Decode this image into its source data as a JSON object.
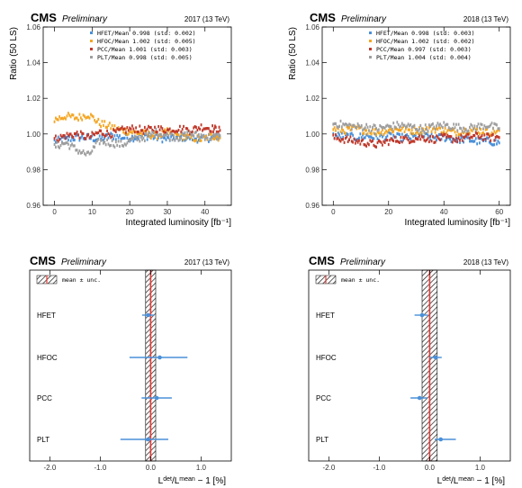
{
  "chart_data": [
    {
      "type": "scatter",
      "panel": "top-left",
      "experiment": "CMS",
      "status": "Preliminary",
      "energy_label": "2017 (13 TeV)",
      "xlabel": "Integrated luminosity [fb⁻¹]",
      "ylabel": "Ratio (50 LS)",
      "xlim": [
        -3,
        47
      ],
      "ylim": [
        0.96,
        1.06
      ],
      "xticks": [
        0,
        10,
        20,
        30,
        40
      ],
      "xticklabels": [
        "0",
        "10",
        "20",
        "30",
        "40"
      ],
      "yticks": [
        0.96,
        0.98,
        1.0,
        1.02,
        1.04,
        1.06
      ],
      "yticklabels": [
        "0.96",
        "0.98",
        "1.00",
        "1.02",
        "1.04",
        "1.06"
      ],
      "legend_position": "top-right",
      "series": [
        {
          "legend": "HFET/Mean 0.998 (std: 0.002)",
          "color": "#4a90d9",
          "x": [
            0,
            3,
            6,
            9,
            12,
            15,
            18,
            21,
            24,
            27,
            30,
            33,
            36,
            39,
            42,
            44
          ],
          "y": [
            0.996,
            0.997,
            0.998,
            0.998,
            0.997,
            0.999,
            0.998,
            0.998,
            0.999,
            0.998,
            0.997,
            0.998,
            0.998,
            0.997,
            0.998,
            0.998
          ]
        },
        {
          "legend": "HFOC/Mean 1.002 (std: 0.005)",
          "color": "#f5a623",
          "x": [
            0,
            3,
            6,
            9,
            12,
            15,
            18,
            21,
            24,
            27,
            30,
            33,
            36,
            39,
            42,
            44
          ],
          "y": [
            1.008,
            1.01,
            1.009,
            1.011,
            1.006,
            1.004,
            1.002,
            1.001,
            1.0,
            0.999,
            1.001,
            0.999,
            0.998,
            0.997,
            0.999,
            0.998
          ]
        },
        {
          "legend": "PCC/Mean 1.001 (std: 0.003)",
          "color": "#c0392b",
          "x": [
            0,
            3,
            6,
            9,
            12,
            15,
            18,
            21,
            24,
            27,
            30,
            33,
            36,
            39,
            42,
            44
          ],
          "y": [
            0.997,
            0.999,
            1.0,
            0.998,
            1.001,
            1.0,
            1.002,
            1.003,
            1.002,
            1.003,
            1.002,
            1.003,
            1.002,
            1.004,
            1.003,
            1.002
          ]
        },
        {
          "legend": "PLT/Mean 0.998 (std: 0.005)",
          "color": "#9e9e9e",
          "x": [
            0,
            3,
            6,
            9,
            12,
            15,
            18,
            21,
            24,
            27,
            30,
            33,
            36,
            39,
            42,
            44
          ],
          "y": [
            0.993,
            0.995,
            0.991,
            0.988,
            0.996,
            0.995,
            0.994,
            0.997,
            0.998,
            1.001,
            0.999,
            0.998,
            1.0,
            0.999,
            0.998,
            0.999
          ]
        }
      ]
    },
    {
      "type": "scatter",
      "panel": "top-right",
      "experiment": "CMS",
      "status": "Preliminary",
      "energy_label": "2018 (13 TeV)",
      "xlabel": "Integrated luminosity [fb⁻¹]",
      "ylabel": "Ratio (50 LS)",
      "xlim": [
        -4,
        64
      ],
      "ylim": [
        0.96,
        1.06
      ],
      "xticks": [
        0,
        20,
        40,
        60
      ],
      "xticklabels": [
        "0",
        "20",
        "40",
        "60"
      ],
      "yticks": [
        0.96,
        0.98,
        1.0,
        1.02,
        1.04,
        1.06
      ],
      "yticklabels": [
        "0.96",
        "0.98",
        "1.00",
        "1.02",
        "1.04",
        "1.06"
      ],
      "legend_position": "top-right",
      "series": [
        {
          "legend": "HFET/Mean 0.998 (std: 0.003)",
          "color": "#4a90d9",
          "x": [
            0,
            4,
            8,
            12,
            16,
            20,
            24,
            28,
            32,
            36,
            40,
            44,
            48,
            52,
            56,
            60
          ],
          "y": [
            0.999,
            0.999,
            0.998,
            0.999,
            0.998,
            0.999,
            0.998,
            0.998,
            0.999,
            0.998,
            0.998,
            0.997,
            0.997,
            0.996,
            0.996,
            0.995
          ]
        },
        {
          "legend": "HFOC/Mean 1.002 (std: 0.002)",
          "color": "#f5a623",
          "x": [
            0,
            4,
            8,
            12,
            16,
            20,
            24,
            28,
            32,
            36,
            40,
            44,
            48,
            52,
            56,
            60
          ],
          "y": [
            1.003,
            1.002,
            1.003,
            1.002,
            1.001,
            1.002,
            1.003,
            1.002,
            1.002,
            1.003,
            1.002,
            1.001,
            1.002,
            1.002,
            1.001,
            1.002
          ]
        },
        {
          "legend": "PCC/Mean 0.997 (std: 0.003)",
          "color": "#c0392b",
          "x": [
            0,
            4,
            8,
            12,
            16,
            20,
            24,
            28,
            32,
            36,
            40,
            44,
            48,
            52,
            56,
            60
          ],
          "y": [
            0.998,
            0.997,
            0.996,
            0.995,
            0.994,
            0.996,
            0.997,
            0.997,
            0.998,
            0.997,
            0.998,
            0.997,
            0.998,
            0.999,
            0.998,
            0.998
          ]
        },
        {
          "legend": "PLT/Mean 1.004 (std: 0.004)",
          "color": "#9e9e9e",
          "x": [
            0,
            4,
            8,
            12,
            16,
            20,
            24,
            28,
            32,
            36,
            40,
            44,
            48,
            52,
            56,
            60
          ],
          "y": [
            1.006,
            1.005,
            1.004,
            1.004,
            1.003,
            1.004,
            1.005,
            1.004,
            1.003,
            1.004,
            1.005,
            1.004,
            1.003,
            1.004,
            1.005,
            1.003
          ]
        }
      ]
    },
    {
      "type": "scatter",
      "panel": "bottom-left",
      "experiment": "CMS",
      "status": "Preliminary",
      "energy_label": "2017 (13 TeV)",
      "xlabel_main": "L",
      "xlabel_sup": "det",
      "xlabel_mid": "/L",
      "xlabel_sup2": "mean",
      "xlabel_tail": " − 1 [%]",
      "xlim": [
        -2.4,
        1.6
      ],
      "xticks": [
        -2.0,
        -1.0,
        0.0,
        1.0
      ],
      "xticklabels": [
        "-2.0",
        "-1.0",
        "0.0",
        "1.0"
      ],
      "legend_label": "mean ± unc.",
      "legend_position": "top-left",
      "band": [
        -0.1,
        0.1
      ],
      "detectors": [
        "HFET",
        "HFOC",
        "PCC",
        "PLT"
      ],
      "central": [
        -0.05,
        0.18,
        0.12,
        -0.05
      ],
      "err_minus": [
        0.12,
        0.6,
        0.3,
        0.55
      ],
      "err_plus": [
        0.12,
        0.55,
        0.3,
        0.4
      ]
    },
    {
      "type": "scatter",
      "panel": "bottom-right",
      "experiment": "CMS",
      "status": "Preliminary",
      "energy_label": "2018 (13 TeV)",
      "xlabel_main": "L",
      "xlabel_sup": "det",
      "xlabel_mid": "/L",
      "xlabel_sup2": "mean",
      "xlabel_tail": " − 1 [%]",
      "xlim": [
        -2.4,
        1.6
      ],
      "xticks": [
        -2.0,
        -1.0,
        0.0,
        1.0
      ],
      "xticklabels": [
        "-2.0",
        "-1.0",
        "0.0",
        "1.0"
      ],
      "legend_label": "mean ± unc.",
      "legend_position": "top-left",
      "band": [
        -0.15,
        0.15
      ],
      "detectors": [
        "HFET",
        "HFOC",
        "PCC",
        "PLT"
      ],
      "central": [
        -0.15,
        0.12,
        -0.2,
        0.22
      ],
      "err_minus": [
        0.15,
        0.12,
        0.18,
        0.12
      ],
      "err_plus": [
        0.12,
        0.12,
        0.15,
        0.3
      ]
    }
  ]
}
